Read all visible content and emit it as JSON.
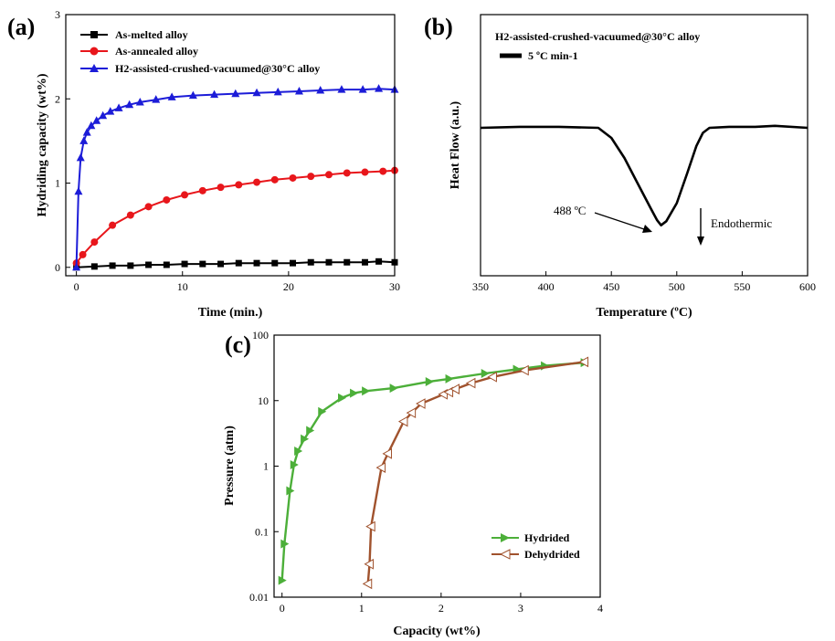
{
  "chart_data": [
    {
      "panel": "(a)",
      "type": "line",
      "xlabel": "Time (min.)",
      "ylabel": "Hydriding capacity (wt%)",
      "xlim": [
        -1,
        30
      ],
      "ylim": [
        -0.1,
        3
      ],
      "xticks": [
        0,
        10,
        20,
        30
      ],
      "yticks": [
        0,
        1,
        2,
        3
      ],
      "legend_position": "top-left",
      "series": [
        {
          "name": "As-melted alloy",
          "color": "#000000",
          "marker": "square",
          "x": [
            0,
            1.7,
            3.4,
            5.1,
            6.8,
            8.5,
            10.2,
            11.9,
            13.6,
            15.3,
            17.0,
            18.7,
            20.4,
            22.1,
            23.8,
            25.5,
            27.2,
            28.5,
            30
          ],
          "y": [
            0,
            0.01,
            0.02,
            0.02,
            0.03,
            0.03,
            0.04,
            0.04,
            0.04,
            0.05,
            0.05,
            0.05,
            0.05,
            0.06,
            0.06,
            0.06,
            0.06,
            0.07,
            0.06
          ]
        },
        {
          "name": "As-annealed alloy",
          "color": "#e8161b",
          "marker": "circle",
          "x": [
            0,
            0.6,
            1.7,
            3.4,
            5.1,
            6.8,
            8.5,
            10.2,
            11.9,
            13.6,
            15.3,
            17.0,
            18.7,
            20.4,
            22.1,
            23.8,
            25.5,
            27.2,
            28.9,
            30
          ],
          "y": [
            0.05,
            0.15,
            0.3,
            0.5,
            0.62,
            0.72,
            0.8,
            0.86,
            0.91,
            0.95,
            0.98,
            1.01,
            1.04,
            1.06,
            1.08,
            1.1,
            1.12,
            1.13,
            1.14,
            1.15
          ]
        },
        {
          "name": "H2-assisted-crushed-vacuumed@30°C alloy",
          "color": "#1c1cd8",
          "marker": "triangle",
          "x": [
            0,
            0.2,
            0.4,
            0.7,
            1.0,
            1.4,
            1.9,
            2.5,
            3.2,
            4.0,
            5.0,
            6.0,
            7.5,
            9.0,
            11,
            13,
            15,
            17,
            19,
            21,
            23,
            25,
            27,
            28.5,
            30
          ],
          "y": [
            0,
            0.9,
            1.3,
            1.5,
            1.6,
            1.68,
            1.74,
            1.8,
            1.85,
            1.89,
            1.93,
            1.96,
            1.99,
            2.02,
            2.04,
            2.05,
            2.06,
            2.07,
            2.08,
            2.09,
            2.1,
            2.11,
            2.11,
            2.12,
            2.11
          ]
        }
      ]
    },
    {
      "panel": "(b)",
      "type": "line",
      "title": "H2-assisted-crushed-vacuumed@30°C alloy",
      "xlabel": "Temperature (ºC)",
      "ylabel": "Heat Flow (a.u.)",
      "xlim": [
        350,
        600
      ],
      "xticks": [
        350,
        400,
        450,
        500,
        550,
        600
      ],
      "legend_position": "top-left",
      "series": [
        {
          "name": "5 ºC min-1",
          "color": "#000000",
          "x": [
            350,
            380,
            410,
            440,
            450,
            460,
            470,
            480,
            485,
            488,
            492,
            500,
            508,
            515,
            520,
            525,
            540,
            560,
            575,
            600
          ],
          "y": [
            0,
            0.01,
            0.01,
            0,
            -0.1,
            -0.3,
            -0.55,
            -0.8,
            -0.92,
            -0.97,
            -0.93,
            -0.75,
            -0.45,
            -0.18,
            -0.05,
            0,
            0.01,
            0.01,
            0.02,
            0
          ]
        }
      ],
      "annotations": [
        {
          "text": "488 ºC",
          "x": 488
        },
        {
          "text": "Endothermic"
        }
      ]
    },
    {
      "panel": "(c)",
      "type": "line",
      "xlabel": "Capacity (wt%)",
      "ylabel": "Pressure (atm)",
      "xlim": [
        -0.1,
        4
      ],
      "ylim": [
        0.01,
        100
      ],
      "y_scale": "log",
      "xticks": [
        0,
        1,
        2,
        3,
        4
      ],
      "yticks": [
        0.01,
        0.1,
        1,
        10,
        100
      ],
      "ytick_labels": [
        "0.01",
        "0.1",
        "1",
        "10",
        "100"
      ],
      "legend_position": "bottom-right",
      "series": [
        {
          "name": "Hydrided",
          "color": "#4caf39",
          "marker": "triangle-right-filled",
          "x": [
            0,
            0.03,
            0.1,
            0.15,
            0.2,
            0.28,
            0.35,
            0.5,
            0.75,
            0.9,
            1.05,
            1.4,
            1.85,
            2.1,
            2.55,
            2.95,
            3.3,
            3.8
          ],
          "y": [
            0.018,
            0.065,
            0.42,
            1.05,
            1.7,
            2.6,
            3.5,
            6.8,
            11,
            13,
            14,
            15.5,
            19.5,
            21.5,
            26,
            30,
            34,
            38
          ]
        },
        {
          "name": "Dehydrided",
          "color": "#a0522d",
          "marker": "triangle-left-open",
          "x": [
            1.08,
            1.1,
            1.12,
            1.25,
            1.33,
            1.53,
            1.63,
            1.75,
            2.03,
            2.1,
            2.18,
            2.38,
            2.65,
            3.05,
            3.8
          ],
          "y": [
            0.016,
            0.032,
            0.12,
            0.95,
            1.55,
            4.8,
            6.5,
            9.0,
            12.5,
            13.5,
            15,
            18.5,
            23,
            29,
            39
          ]
        }
      ]
    }
  ]
}
